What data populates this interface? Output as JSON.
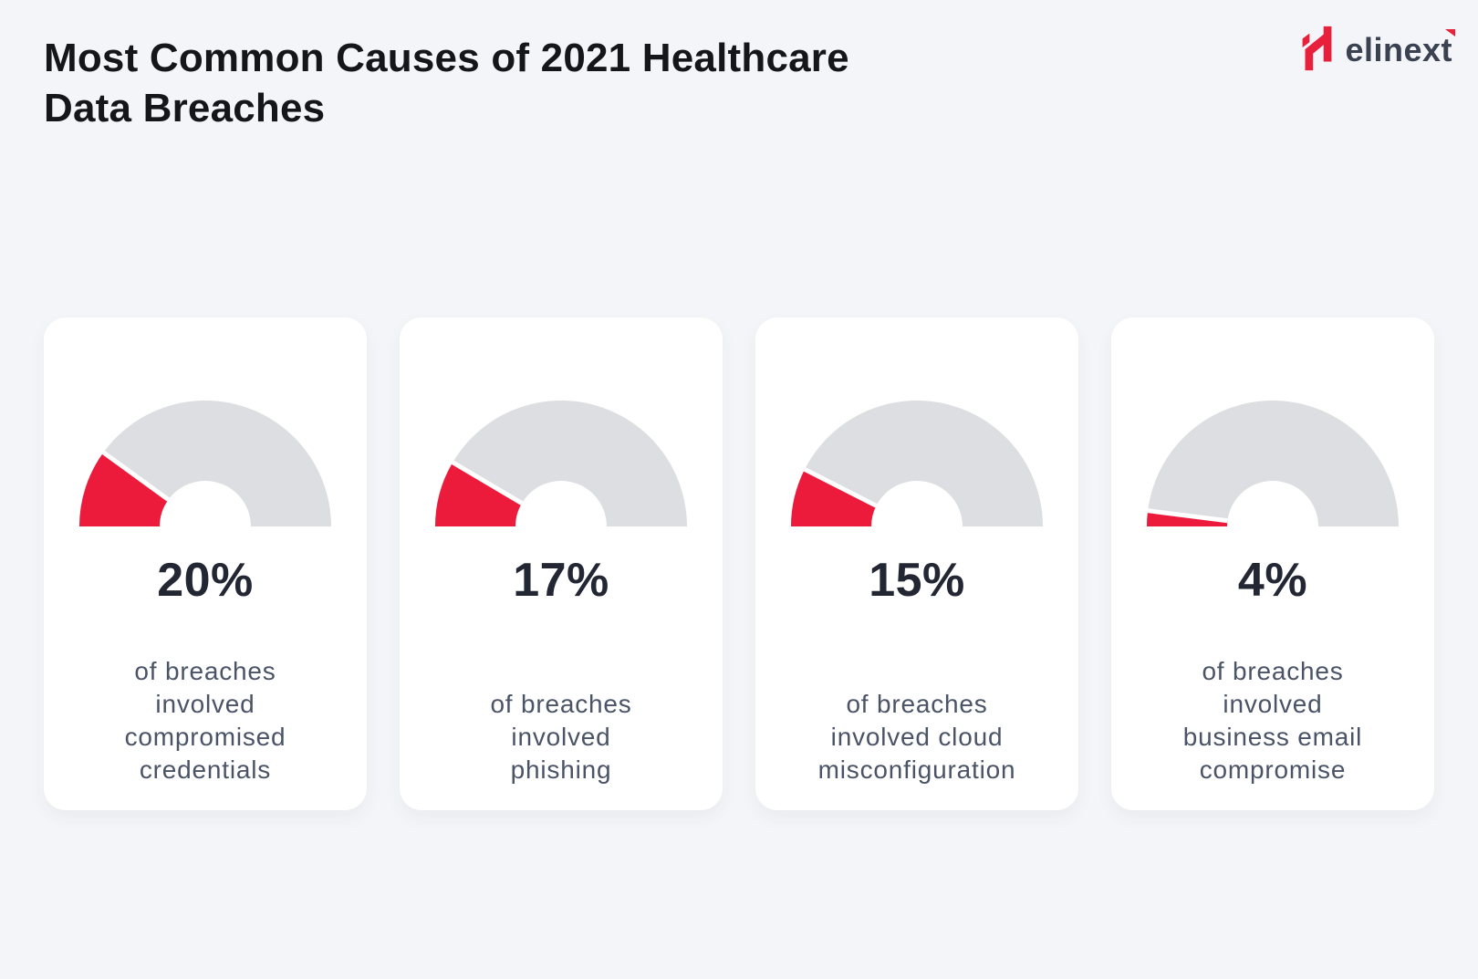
{
  "page": {
    "background_color": "#F4F5F8",
    "card_background_color": "#FFFFFF"
  },
  "header": {
    "title_lines": [
      "Most Common Causes of 2021 Healthcare",
      "Data Breaches"
    ],
    "title_color": "#15161A",
    "logo": {
      "brand": "elinext",
      "brand_color": "#E8203C",
      "wordmark_color": "#3A4150"
    }
  },
  "chart_data": {
    "type": "gauge",
    "subtype": "half-donut-set",
    "max": 100,
    "unit": "%",
    "colors": {
      "value": "#EC1B3B",
      "track": "#DDDEE2",
      "separator": "#FFFFFF"
    },
    "cards": [
      {
        "value": 20,
        "label": "20%",
        "description_lines": [
          "of breaches",
          "involved",
          "compromised",
          "credentials"
        ]
      },
      {
        "value": 17,
        "label": "17%",
        "description_lines": [
          "of breaches",
          "involved",
          "phishing"
        ]
      },
      {
        "value": 15,
        "label": "15%",
        "description_lines": [
          "of breaches",
          "involved cloud",
          "misconfiguration"
        ]
      },
      {
        "value": 4,
        "label": "4%",
        "description_lines": [
          "of breaches",
          "involved",
          "business email",
          "compromise"
        ]
      }
    ]
  }
}
